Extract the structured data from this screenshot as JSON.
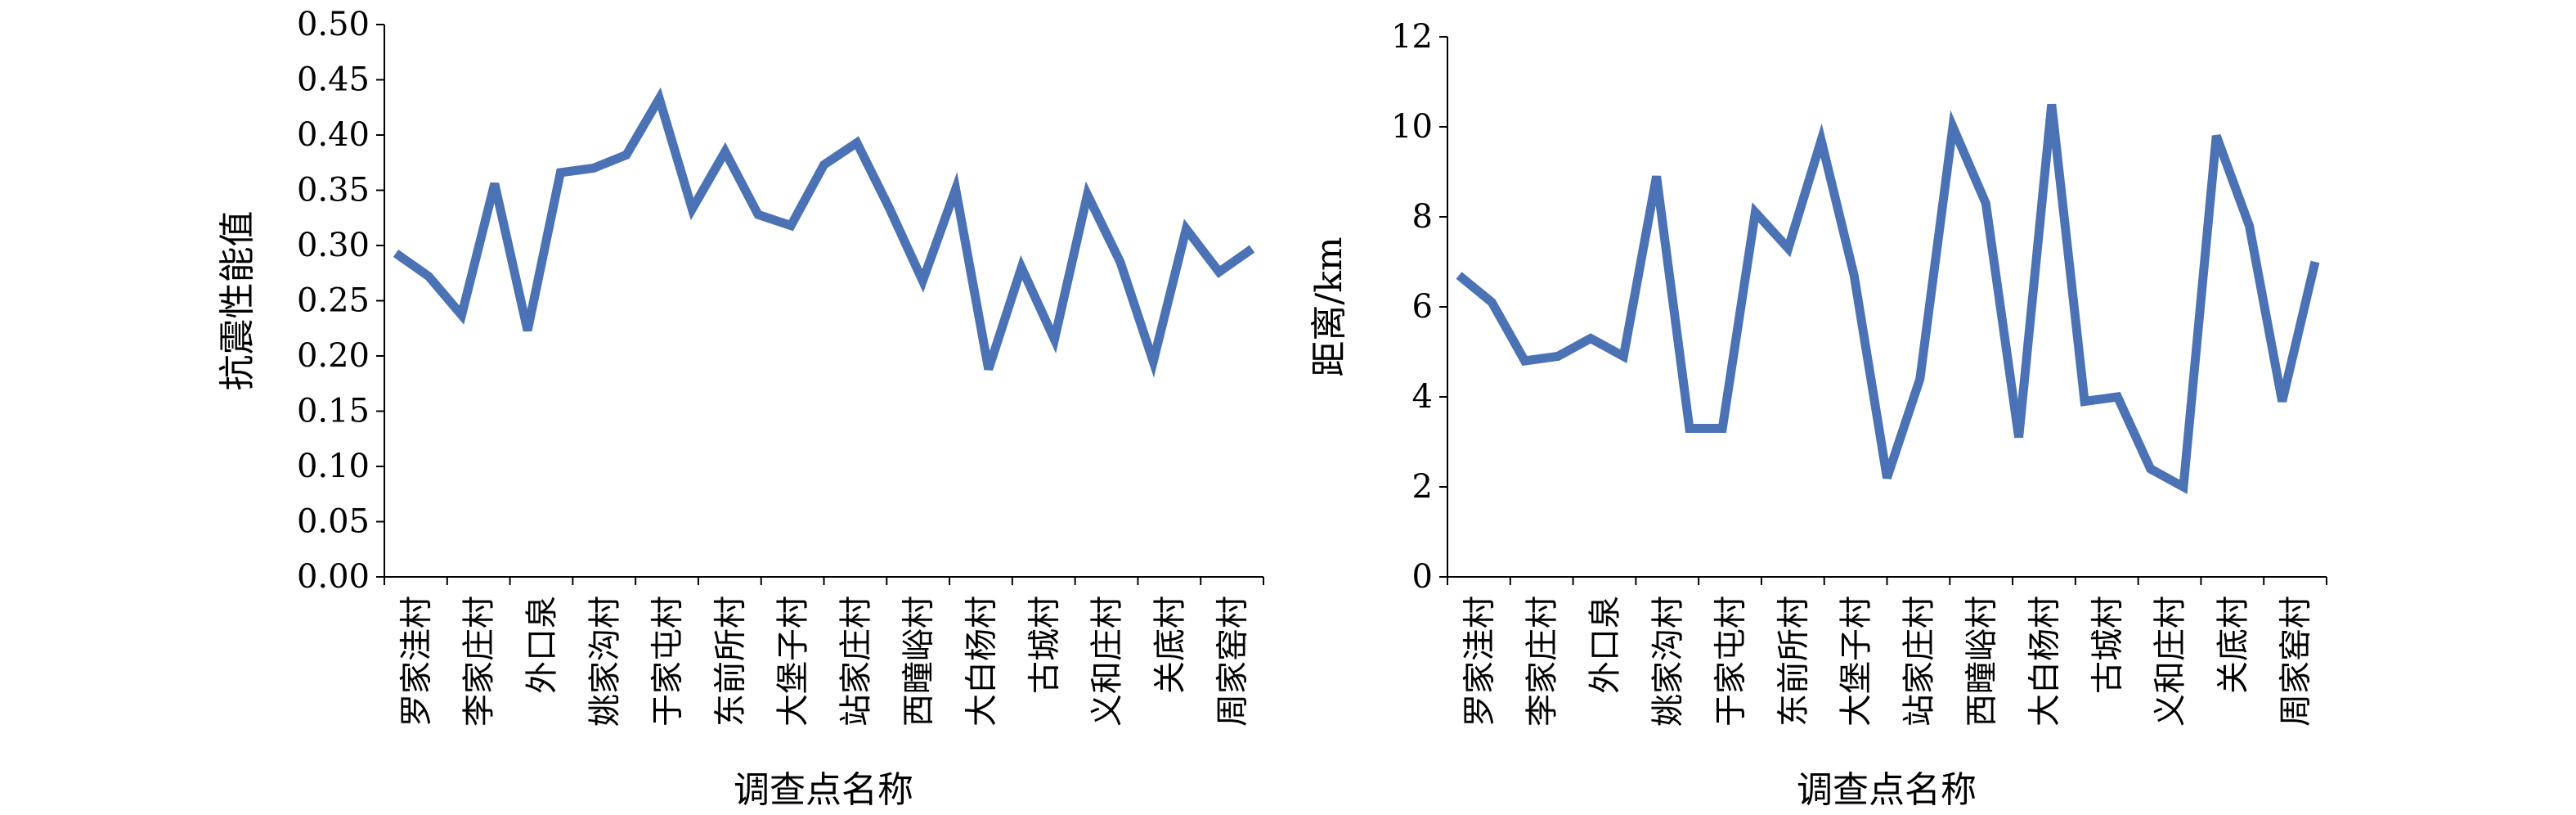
{
  "chart_data": [
    {
      "type": "line",
      "xlabel": "调查点名称",
      "ylabel": "抗震性能值",
      "ylim": [
        0,
        0.5
      ],
      "yticks": [
        "0.00",
        "0.05",
        "0.10",
        "0.15",
        "0.20",
        "0.25",
        "0.30",
        "0.35",
        "0.40",
        "0.45",
        "0.50"
      ],
      "ytick_values": [
        0,
        0.05,
        0.1,
        0.15,
        0.2,
        0.25,
        0.3,
        0.35,
        0.4,
        0.45,
        0.5
      ],
      "x_tick_labels": [
        "罗家洼村",
        "李家庄村",
        "外口泉",
        "姚家沟村",
        "于家屯村",
        "东前所村",
        "大堡子村",
        "站家庄村",
        "西疃峪村",
        "大白杨村",
        "古城村",
        "义和庄村",
        "关底村",
        "周家窑村"
      ],
      "grid": false,
      "legend": "none",
      "series_color": "#4a72b5",
      "series": [
        {
          "values": [
            0.293,
            0.272,
            0.237,
            0.356,
            0.223,
            0.366,
            0.37,
            0.382,
            0.433,
            0.333,
            0.385,
            0.328,
            0.318,
            0.373,
            0.393,
            0.333,
            0.268,
            0.351,
            0.188,
            0.28,
            0.215,
            0.346,
            0.285,
            0.195,
            0.315,
            0.276,
            0.297
          ]
        }
      ]
    },
    {
      "type": "line",
      "xlabel": "调查点名称",
      "ylabel": "距离/km",
      "ylim": [
        0,
        12
      ],
      "yticks": [
        "0",
        "2",
        "4",
        "6",
        "8",
        "10",
        "12"
      ],
      "ytick_values": [
        0,
        2,
        4,
        6,
        8,
        10,
        12
      ],
      "x_tick_labels": [
        "罗家洼村",
        "李家庄村",
        "外口泉",
        "姚家沟村",
        "于家屯村",
        "东前所村",
        "大堡子村",
        "站家庄村",
        "西疃峪村",
        "大白杨村",
        "古城村",
        "义和庄村",
        "关底村",
        "周家窑村"
      ],
      "grid": false,
      "legend": "none",
      "series_color": "#4a72b5",
      "series": [
        {
          "values": [
            6.7,
            6.1,
            4.8,
            4.9,
            5.3,
            4.9,
            8.9,
            3.3,
            3.3,
            8.1,
            7.3,
            9.7,
            6.7,
            2.2,
            4.4,
            10.0,
            8.3,
            3.1,
            10.5,
            3.9,
            4.0,
            2.4,
            2.0,
            9.8,
            7.8,
            3.9,
            7.0
          ]
        }
      ]
    }
  ]
}
